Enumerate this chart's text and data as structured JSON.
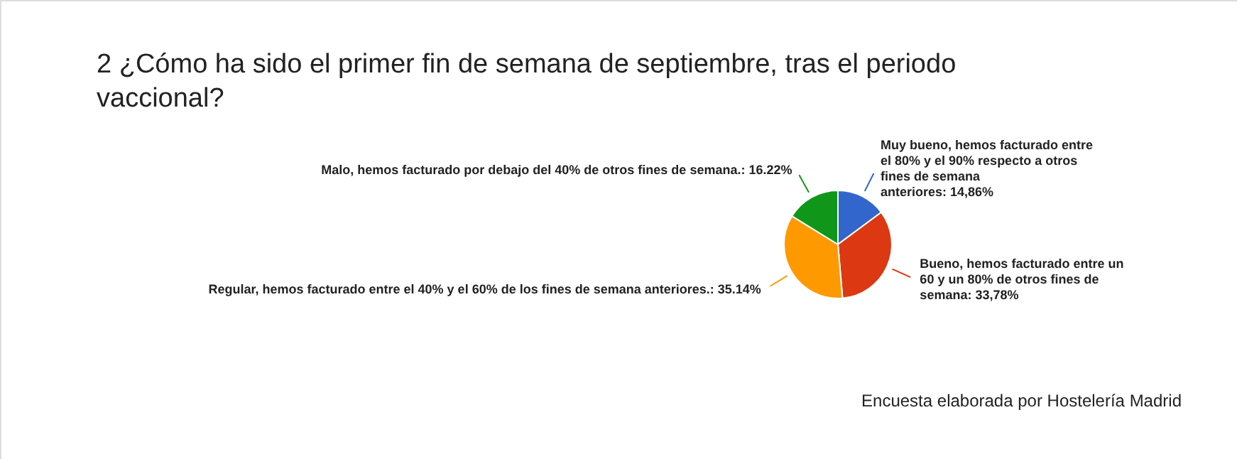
{
  "chart_data": {
    "type": "pie",
    "title": "2 ¿Cómo ha sido el primer fin de semana de septiembre, tras el periodo vaccional?",
    "categories": [
      "Muy bueno, hemos facturado entre el 80% y el 90% respecto a otros fines de semana anteriores",
      "Bueno, hemos facturado entre un 60 y un 80% de otros fines de semana",
      "Regular, hemos facturado entre el 40% y el 60% de los fines de semana anteriores.",
      "Malo, hemos facturado por debajo del 40% de otros fines de semana."
    ],
    "values": [
      14.86,
      33.78,
      35.14,
      16.22
    ],
    "value_labels": [
      "14,86%",
      "33,78%",
      "35.14%",
      "16.22%"
    ],
    "colors": [
      "#3366cc",
      "#dc3912",
      "#ff9900",
      "#109618"
    ],
    "annotations": [
      "Encuesta elaborada por Hostelería Madrid"
    ]
  }
}
